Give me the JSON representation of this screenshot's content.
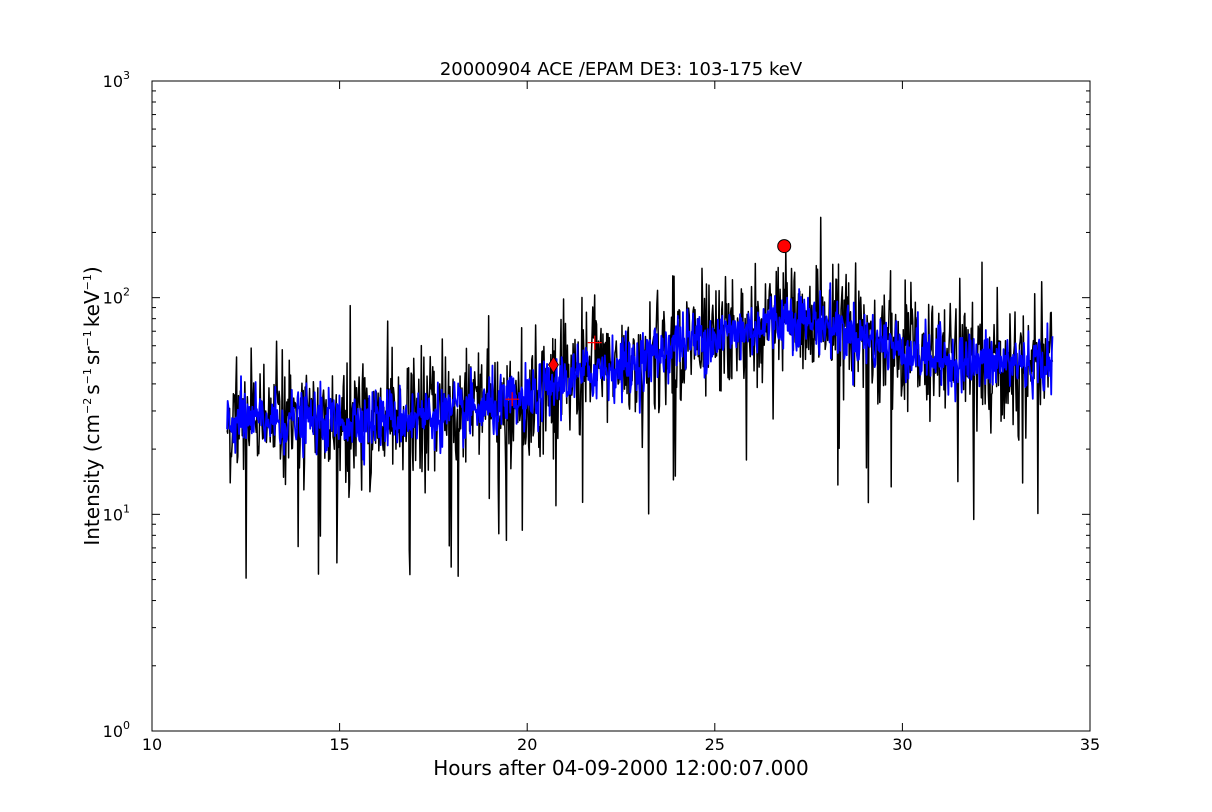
{
  "chart_data": {
    "type": "line",
    "title": "20000904 ACE /EPAM DE3: 103-175 keV",
    "xlabel": "Hours after 04-09-2000 12:00:07.000",
    "ylabel": {
      "prefix": "Intensity (cm",
      "exp1": "−2",
      "p2": "s",
      "exp2": "−1",
      "p3": "sr",
      "exp3": "−1",
      "p4": "keV",
      "exp4": "−1",
      "suffix": ")"
    },
    "xlim": [
      10,
      35
    ],
    "ylim": [
      1,
      1000
    ],
    "yscale": "log",
    "grid": false,
    "x_ticks": [
      10,
      15,
      20,
      25,
      30,
      35
    ],
    "x_tick_labels": [
      "10",
      "15",
      "20",
      "25",
      "30",
      "35"
    ],
    "y_ticks": [
      1,
      10,
      100,
      1000
    ],
    "y_tick_labels": [
      {
        "base": "10",
        "exp": "0"
      },
      {
        "base": "10",
        "exp": "1"
      },
      {
        "base": "10",
        "exp": "2"
      },
      {
        "base": "10",
        "exp": "3"
      }
    ],
    "series": [
      {
        "style": "raw",
        "color": "#000000",
        "x_start": 12.0,
        "x_end": 34.0,
        "trend": [
          [
            12,
            27
          ],
          [
            15,
            27
          ],
          [
            18,
            29
          ],
          [
            20,
            33
          ],
          [
            21,
            42
          ],
          [
            22,
            47
          ],
          [
            23,
            50
          ],
          [
            24,
            62
          ],
          [
            25,
            66
          ],
          [
            26,
            72
          ],
          [
            27,
            82
          ],
          [
            28,
            75
          ],
          [
            29,
            65
          ],
          [
            30,
            58
          ],
          [
            31,
            52
          ],
          [
            32,
            50
          ],
          [
            34,
            50
          ]
        ]
      },
      {
        "style": "smoothed",
        "color": "#0000ff",
        "x_start": 12.0,
        "x_end": 34.0,
        "trend": [
          [
            12,
            27
          ],
          [
            15,
            27
          ],
          [
            18,
            29
          ],
          [
            20,
            33
          ],
          [
            21,
            42
          ],
          [
            22,
            47
          ],
          [
            23,
            50
          ],
          [
            24,
            62
          ],
          [
            25,
            66
          ],
          [
            26,
            72
          ],
          [
            27,
            82
          ],
          [
            28,
            75
          ],
          [
            29,
            65
          ],
          [
            30,
            58
          ],
          [
            31,
            52
          ],
          [
            32,
            50
          ],
          [
            34,
            50
          ]
        ]
      }
    ],
    "markers": [
      {
        "shape": "plus",
        "x": 19.6,
        "y": 34,
        "color": "#ff0000"
      },
      {
        "shape": "diamond",
        "x": 20.7,
        "y": 49,
        "color": "#ff0000"
      },
      {
        "shape": "plus",
        "x": 21.8,
        "y": 62,
        "color": "#ff0000"
      },
      {
        "shape": "circle",
        "x": 26.85,
        "y": 173,
        "color": "#ff0000"
      }
    ]
  }
}
